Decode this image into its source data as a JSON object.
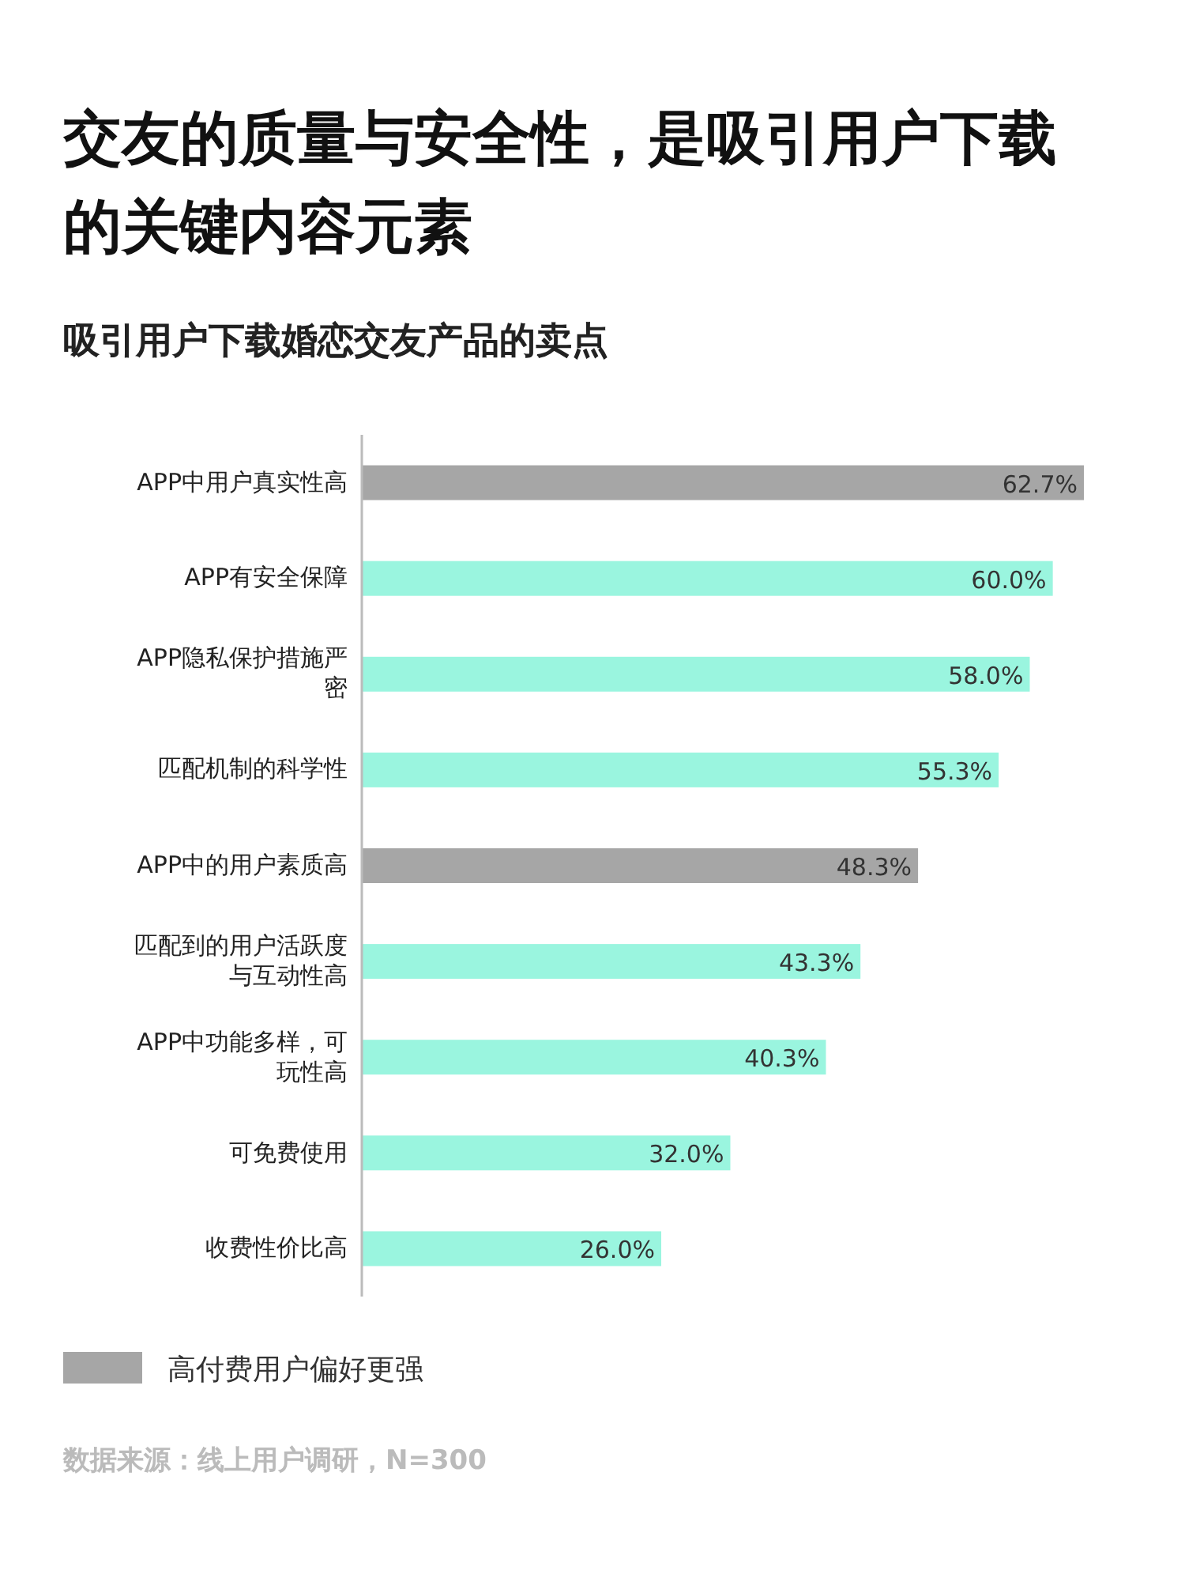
{
  "chart_data": {
    "type": "bar",
    "orientation": "horizontal",
    "title": "交友的质量与安全性，是吸引用户下载的关键内容元素",
    "subtitle": "吸引用户下载婚恋交友产品的卖点",
    "categories": [
      "APP中用户真实性高",
      "APP有安全保障",
      "APP隐私保护措施严密",
      "匹配机制的科学性",
      "APP中的用户素质高",
      "匹配到的用户活跃度与互动性高",
      "APP中功能多样，可玩性高",
      "可免费使用",
      "收费性价比高"
    ],
    "series": [
      {
        "name": "高付费用户偏好更强",
        "color": "#a6a6a6",
        "values": [
          62.7,
          null,
          null,
          null,
          48.3,
          null,
          null,
          null,
          null
        ],
        "value_labels": [
          "62.7%",
          null,
          null,
          null,
          "48.3%",
          null,
          null,
          null,
          null
        ]
      },
      {
        "color": "#9af5df",
        "values": [
          null,
          60.0,
          58.0,
          55.3,
          null,
          43.3,
          40.3,
          32.0,
          26.0
        ],
        "value_labels": [
          null,
          "60.0%",
          "58.0%",
          "55.3%",
          null,
          "43.3%",
          "40.3%",
          "32.0%",
          "26.0%"
        ]
      }
    ],
    "legend": "bottom",
    "annotations": [
      "数据来源：线上用户调研，N=300"
    ]
  }
}
